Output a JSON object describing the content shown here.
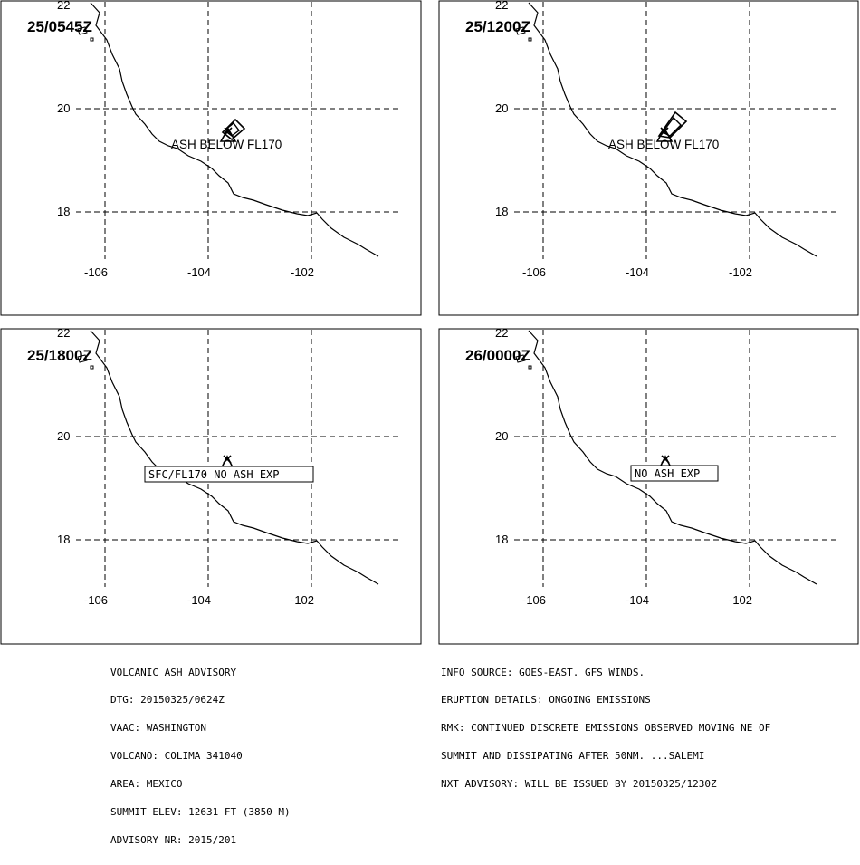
{
  "panels": [
    {
      "id": "p1",
      "time_label": "25/0545Z",
      "lat_labels": [
        "22",
        "20",
        "18"
      ],
      "lon_labels": [
        "-106",
        "-104",
        "-102"
      ],
      "annotation": {
        "text": "ASH BELOW FL170",
        "boxed": false
      },
      "ash_cloud": true
    },
    {
      "id": "p2",
      "time_label": "25/1200Z",
      "lat_labels": [
        "22",
        "20",
        "18"
      ],
      "lon_labels": [
        "-106",
        "-104",
        "-102"
      ],
      "annotation": {
        "text": "ASH BELOW FL170",
        "boxed": false
      },
      "ash_cloud": true
    },
    {
      "id": "p3",
      "time_label": "25/1800Z",
      "lat_labels": [
        "22",
        "20",
        "18"
      ],
      "lon_labels": [
        "-106",
        "-104",
        "-102"
      ],
      "annotation": {
        "text": "SFC/FL170 NO ASH EXP",
        "boxed": true
      },
      "ash_cloud": false
    },
    {
      "id": "p4",
      "time_label": "26/0000Z",
      "lat_labels": [
        "22",
        "20",
        "18"
      ],
      "lon_labels": [
        "-106",
        "-104",
        "-102"
      ],
      "annotation": {
        "text": "NO ASH EXP",
        "boxed": true
      },
      "ash_cloud": false
    }
  ],
  "advisory_left": [
    "VOLCANIC ASH ADVISORY",
    "DTG: 20150325/0624Z",
    "VAAC: WASHINGTON",
    "VOLCANO: COLIMA 341040",
    "AREA: MEXICO",
    "SUMMIT ELEV: 12631 FT (3850 M)",
    "ADVISORY NR: 2015/201"
  ],
  "advisory_right": [
    "INFO SOURCE: GOES-EAST. GFS WINDS.",
    "ERUPTION DETAILS: ONGOING EMISSIONS",
    "RMK: CONTINUED DISCRETE EMISSIONS OBSERVED MOVING NE OF",
    "SUMMIT AND DISSIPATING AFTER 50NM. ...SALEMI",
    "NXT ADVISORY: WILL BE ISSUED BY 20150325/1230Z"
  ]
}
